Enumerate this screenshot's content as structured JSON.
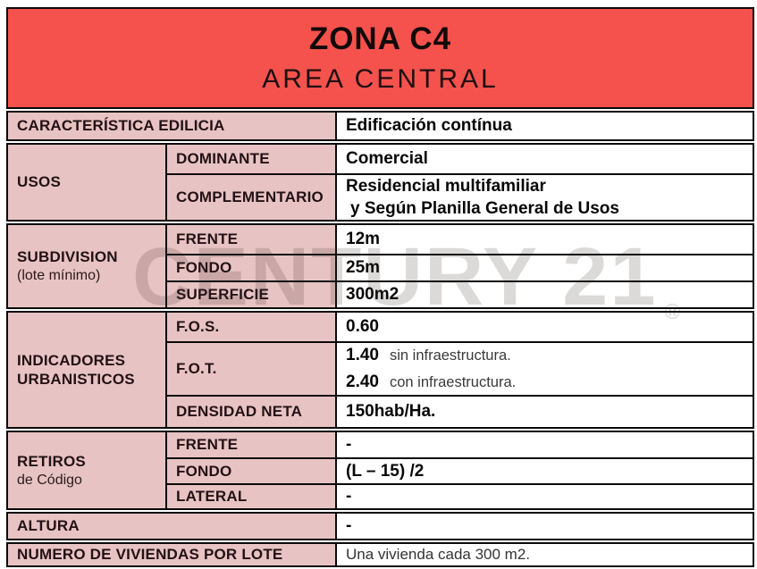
{
  "header": {
    "title": "ZONA C4",
    "subtitle": "AREA CENTRAL"
  },
  "watermark": {
    "text": "CENTURY 21",
    "reg": "®"
  },
  "colors": {
    "header_bg": "#f5524d",
    "cell_pink": "#e8c3c3",
    "border": "#0a0a0a",
    "label_text": "#221114"
  },
  "table": {
    "caracteristica": {
      "label": "CARACTERÍSTICA EDILICIA",
      "value": "Edificación contínua"
    },
    "usos": {
      "label": "USOS",
      "dominante": {
        "key": "DOMINANTE",
        "value": "Comercial"
      },
      "complementario": {
        "key": "COMPLEMENTARIO",
        "line1": "Residencial multifamiliar",
        "line2": "y Según Planilla General de Usos"
      }
    },
    "subdivision": {
      "label": "SUBDIVISION",
      "note": "(lote mínimo)",
      "frente": {
        "key": "FRENTE",
        "value": "12m"
      },
      "fondo": {
        "key": "FONDO",
        "value": "25m"
      },
      "superficie": {
        "key": "SUPERFICIE",
        "value": "300m2"
      }
    },
    "indicadores": {
      "label_line1": "INDICADORES",
      "label_line2": "URBANISTICOS",
      "fos": {
        "key": "F.O.S.",
        "value": "0.60"
      },
      "fot": {
        "key": "F.O.T.",
        "lines": [
          {
            "num": "1.40",
            "text": "sin infraestructura."
          },
          {
            "num": "2.40",
            "text": "con infraestructura."
          }
        ]
      },
      "densidad": {
        "key": "DENSIDAD NETA",
        "value": "150hab/Ha."
      }
    },
    "retiros": {
      "label": "RETIROS",
      "note": "de Código",
      "frente": {
        "key": "FRENTE",
        "value": "-"
      },
      "fondo": {
        "key": "FONDO",
        "value": "(L – 15) /2"
      },
      "lateral": {
        "key": "LATERAL",
        "value": "-"
      }
    },
    "altura": {
      "label": "ALTURA",
      "value": "-"
    },
    "viviendas": {
      "label": "NUMERO DE VIVIENDAS POR LOTE",
      "value": "Una vivienda cada 300 m2."
    }
  }
}
